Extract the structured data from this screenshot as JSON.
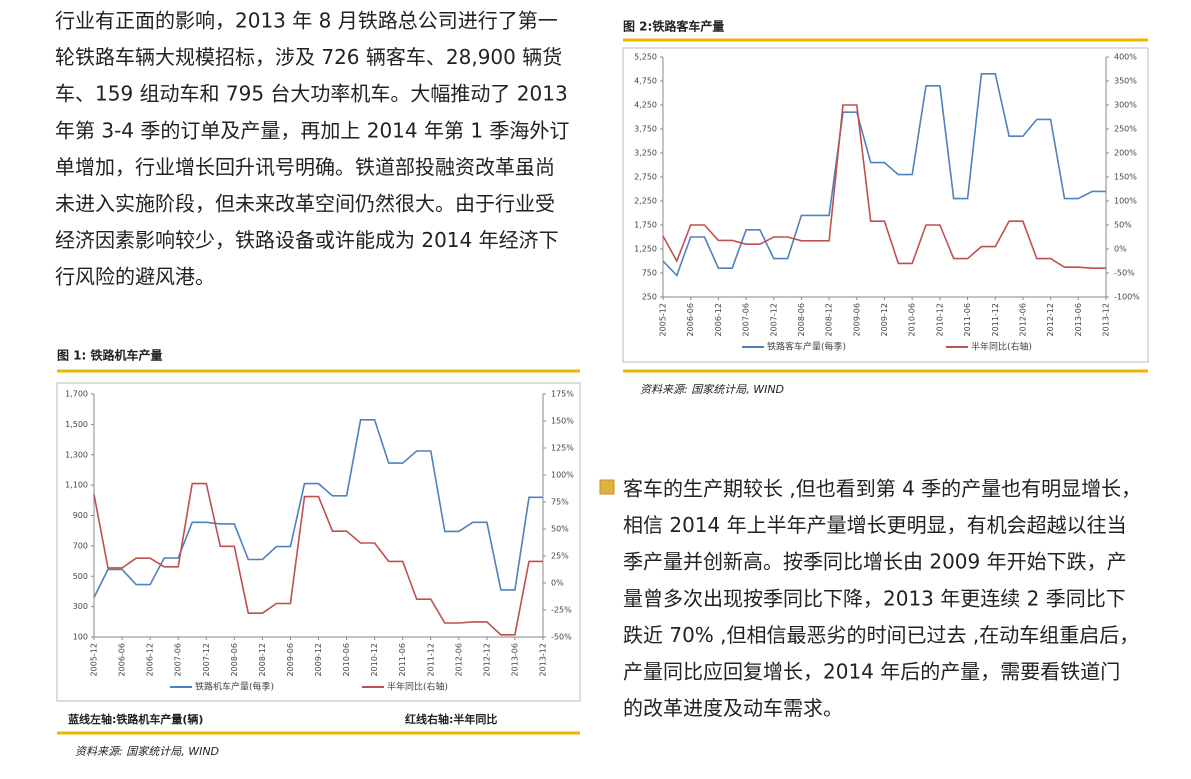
{
  "paragraphs": [
    {
      "lines": [
        "行业有正面的影响，2013 年 8 月铁路总公司进行了第一",
        "轮铁路车辆大规模招标，涉及 726 辆客车、28,900 辆货",
        "车、159 组动车和 795 台大功率机车。大幅推动了 2013",
        "年第 3-4 季的订单及产量，再加上 2014 年第 1 季海外订",
        "单增加，行业增长回升讯号明确。铁道部投融资改革虽尚",
        "未进入实施阶段，但未来改革空间仍然很大。由于行业受",
        "经济因素影响较少，铁路设备或许能成为 2014 年经济下",
        "行风险的避风港。"
      ]
    },
    {
      "lines": [
        "客车的生产期较长 ,但也看到第 4 季的产量也有明显增长，",
        "相信 2014 年上半年产量增长更明显，有机会超越以往当",
        "季产量并创新高。按季同比增长由 2009 年开始下跌，产",
        "量曾多次出现按季同比下降，2013 年更连续 2 季同比下",
        "跌近 70% ,但相信最恶劣的时间已过去 ,在动车组重启后，",
        "产量同比应回复增长，2014 年后的产量，需要看铁道门",
        "的改革进度及动车需求。"
      ]
    }
  ],
  "chart_data": [
    {
      "type": "line",
      "title": "图 1:  铁路机车产量",
      "caption_left": "蓝线左轴:铁路机车产量(辆)",
      "caption_right": "红线右轴:半年同比",
      "source": "资料来源: 国家统计局, WIND",
      "categories": [
        "2005-12",
        null,
        "2006-06",
        null,
        "2006-12",
        null,
        "2007-06",
        null,
        "2007-12",
        null,
        "2008-06",
        null,
        "2008-12",
        null,
        "2009-06",
        null,
        "2009-12",
        null,
        "2010-06",
        null,
        "2010-12",
        null,
        "2011-06",
        null,
        "2011-12",
        null,
        "2012-06",
        null,
        "2012-12",
        null,
        "2013-06",
        null,
        "2013-12"
      ],
      "series": [
        {
          "name": "铁路机车产量(每季)",
          "color": "#4f81bd",
          "values": [
            360,
            545,
            545,
            445,
            445,
            620,
            620,
            855,
            855,
            845,
            845,
            610,
            610,
            695,
            695,
            1110,
            1110,
            1030,
            1030,
            1530,
            1530,
            1245,
            1245,
            1325,
            1325,
            795,
            795,
            855,
            855,
            410,
            410,
            1020,
            1020
          ]
        },
        {
          "name": "半年同比(右轴)",
          "color": "#c0504d",
          "axis": "y2",
          "values": [
            82,
            14,
            14,
            23,
            23,
            15,
            15,
            92,
            92,
            34,
            34,
            -28,
            -28,
            -19,
            -19,
            80,
            80,
            48,
            48,
            37,
            37,
            20,
            20,
            -15,
            -15,
            -37,
            -37,
            -36,
            -36,
            -48,
            -48,
            20,
            20
          ]
        }
      ],
      "ylim": [
        100,
        1700
      ],
      "yticks": [
        100,
        300,
        500,
        700,
        900,
        {
          "value": 1100,
          "label": "1,100"
        },
        {
          "value": 1300,
          "label": "1,300"
        },
        {
          "value": 1500,
          "label": "1,500"
        },
        {
          "value": 1700,
          "label": "1,700"
        }
      ],
      "y2lim": [
        -50,
        175
      ],
      "y2ticks": [
        {
          "value": -50,
          "label": "-50%"
        },
        {
          "value": -25,
          "label": "-25%"
        },
        {
          "value": 0,
          "label": "0%"
        },
        {
          "value": 25,
          "label": "25%"
        },
        {
          "value": 50,
          "label": "50%"
        },
        {
          "value": 75,
          "label": "75%"
        },
        {
          "value": 100,
          "label": "100%"
        },
        {
          "value": 125,
          "label": "125%"
        },
        {
          "value": 150,
          "label": "150%"
        },
        {
          "value": 175,
          "label": "175%"
        }
      ],
      "grid": false
    },
    {
      "type": "line",
      "title": "图 2:铁路客车产量",
      "source": "资料来源: 国家统计局, WIND",
      "categories": [
        "2005-12",
        null,
        "2006-06",
        null,
        "2006-12",
        null,
        "2007-06",
        null,
        "2007-12",
        null,
        "2008-06",
        null,
        "2008-12",
        null,
        "2009-06",
        null,
        "2009-12",
        null,
        "2010-06",
        null,
        "2010-12",
        null,
        "2011-06",
        null,
        "2011-12",
        null,
        "2012-06",
        null,
        "2012-12",
        null,
        "2013-06",
        null,
        "2013-12"
      ],
      "series": [
        {
          "name": "铁路客车产量(每季)",
          "color": "#4f81bd",
          "values": [
            1000,
            700,
            1500,
            1500,
            850,
            850,
            1650,
            1650,
            1050,
            1050,
            1950,
            1950,
            1950,
            4100,
            4100,
            3050,
            3050,
            2800,
            2800,
            4650,
            4650,
            2300,
            2300,
            4900,
            4900,
            3600,
            3600,
            3950,
            3950,
            2300,
            2300,
            2450,
            2450
          ]
        },
        {
          "name": "半年同比(右轴)",
          "color": "#c0504d",
          "axis": "y2",
          "values": [
            27,
            -25,
            50,
            50,
            18,
            18,
            10,
            10,
            25,
            25,
            17,
            17,
            17,
            300,
            300,
            58,
            58,
            -30,
            -30,
            50,
            50,
            -20,
            -20,
            5,
            5,
            58,
            58,
            -20,
            -20,
            -38,
            -38,
            -40,
            -40
          ]
        }
      ],
      "ylim": [
        250,
        5250
      ],
      "yticks": [
        250,
        750,
        {
          "value": 1250,
          "label": "1,250"
        },
        {
          "value": 1750,
          "label": "1,750"
        },
        {
          "value": 2250,
          "label": "2,250"
        },
        {
          "value": 2750,
          "label": "2,750"
        },
        {
          "value": 3250,
          "label": "3,250"
        },
        {
          "value": 3750,
          "label": "3,750"
        },
        {
          "value": 4250,
          "label": "4,250"
        },
        {
          "value": 4750,
          "label": "4,750"
        },
        {
          "value": 5250,
          "label": "5,250"
        }
      ],
      "y2lim": [
        -100,
        400
      ],
      "y2ticks": [
        {
          "value": -100,
          "label": "-100%"
        },
        {
          "value": -50,
          "label": "-50%"
        },
        {
          "value": 0,
          "label": "0%"
        },
        {
          "value": 50,
          "label": "50%"
        },
        {
          "value": 100,
          "label": "100%"
        },
        {
          "value": 150,
          "label": "150%"
        },
        {
          "value": 200,
          "label": "200%"
        },
        {
          "value": 250,
          "label": "250%"
        },
        {
          "value": 300,
          "label": "300%"
        },
        {
          "value": 350,
          "label": "350%"
        },
        {
          "value": 400,
          "label": "400%"
        }
      ],
      "grid": false
    }
  ]
}
